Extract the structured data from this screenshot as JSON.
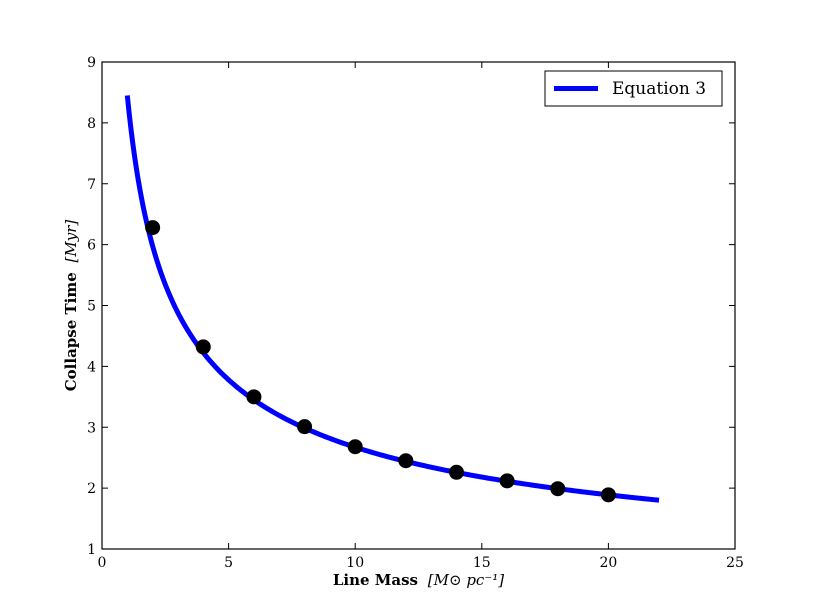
{
  "chart_data": {
    "type": "scatter",
    "xlabel_main": "Line Mass",
    "xlabel_unit": "[M⊙ pc⁻¹]",
    "ylabel_main": "Collapse Time",
    "ylabel_unit": "[Myr]",
    "xlim": [
      0,
      25
    ],
    "ylim": [
      1,
      9
    ],
    "xticks": [
      0,
      5,
      10,
      15,
      20,
      25
    ],
    "yticks": [
      1,
      2,
      3,
      4,
      5,
      6,
      7,
      8,
      9
    ],
    "grid": false,
    "legend_position": "top-right",
    "series": [
      {
        "name": "Equation 3",
        "kind": "line",
        "color": "#0000ff",
        "x_range": [
          1,
          22
        ],
        "formula": "t = 8.45 / sqrt(x)"
      },
      {
        "kind": "scatter",
        "color": "#000000",
        "x": [
          2,
          4,
          6,
          8,
          10,
          12,
          14,
          16,
          18,
          20
        ],
        "y": [
          6.28,
          4.32,
          3.5,
          3.01,
          2.68,
          2.45,
          2.26,
          2.12,
          1.99,
          1.89
        ]
      }
    ]
  }
}
